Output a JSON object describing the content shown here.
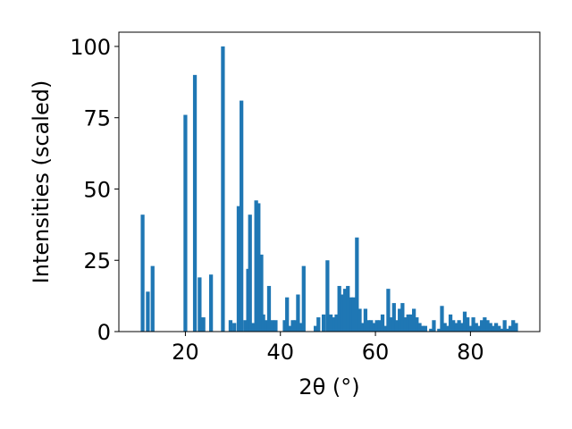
{
  "chart_data": {
    "type": "bar",
    "xlabel": "2θ (°)",
    "ylabel": "Intensities (scaled)",
    "xlim": [
      6.0,
      94.6
    ],
    "ylim": [
      0,
      105
    ],
    "xticks": [
      20,
      40,
      60,
      80
    ],
    "yticks": [
      0,
      25,
      50,
      75,
      100
    ],
    "grid": false,
    "bar_color": "#1f77b4",
    "points": [
      {
        "x": 11.0,
        "y": 41
      },
      {
        "x": 12.1,
        "y": 14
      },
      {
        "x": 13.1,
        "y": 23
      },
      {
        "x": 20.0,
        "y": 76
      },
      {
        "x": 22.0,
        "y": 90
      },
      {
        "x": 23.0,
        "y": 19
      },
      {
        "x": 23.8,
        "y": 5
      },
      {
        "x": 25.4,
        "y": 20
      },
      {
        "x": 27.9,
        "y": 100
      },
      {
        "x": 29.5,
        "y": 4
      },
      {
        "x": 30.3,
        "y": 3
      },
      {
        "x": 31.2,
        "y": 44
      },
      {
        "x": 31.8,
        "y": 81
      },
      {
        "x": 32.6,
        "y": 4
      },
      {
        "x": 33.2,
        "y": 22
      },
      {
        "x": 33.6,
        "y": 41
      },
      {
        "x": 34.3,
        "y": 3
      },
      {
        "x": 34.9,
        "y": 46
      },
      {
        "x": 35.4,
        "y": 45
      },
      {
        "x": 36.0,
        "y": 27
      },
      {
        "x": 36.4,
        "y": 6
      },
      {
        "x": 37.1,
        "y": 4
      },
      {
        "x": 37.6,
        "y": 16
      },
      {
        "x": 38.3,
        "y": 4
      },
      {
        "x": 39.0,
        "y": 4
      },
      {
        "x": 40.9,
        "y": 4
      },
      {
        "x": 41.4,
        "y": 12
      },
      {
        "x": 42.0,
        "y": 2
      },
      {
        "x": 42.6,
        "y": 4
      },
      {
        "x": 43.2,
        "y": 4
      },
      {
        "x": 43.7,
        "y": 13
      },
      {
        "x": 44.3,
        "y": 3
      },
      {
        "x": 44.9,
        "y": 23
      },
      {
        "x": 47.4,
        "y": 2
      },
      {
        "x": 48.0,
        "y": 5
      },
      {
        "x": 49.1,
        "y": 6
      },
      {
        "x": 49.9,
        "y": 25
      },
      {
        "x": 50.6,
        "y": 6
      },
      {
        "x": 51.2,
        "y": 5
      },
      {
        "x": 51.8,
        "y": 6
      },
      {
        "x": 52.4,
        "y": 16
      },
      {
        "x": 53.0,
        "y": 13
      },
      {
        "x": 53.6,
        "y": 15
      },
      {
        "x": 54.2,
        "y": 16
      },
      {
        "x": 54.8,
        "y": 12
      },
      {
        "x": 55.4,
        "y": 12
      },
      {
        "x": 56.1,
        "y": 33
      },
      {
        "x": 56.7,
        "y": 8
      },
      {
        "x": 57.3,
        "y": 3
      },
      {
        "x": 57.9,
        "y": 8
      },
      {
        "x": 58.5,
        "y": 4
      },
      {
        "x": 59.1,
        "y": 4
      },
      {
        "x": 59.7,
        "y": 3
      },
      {
        "x": 60.3,
        "y": 4
      },
      {
        "x": 60.9,
        "y": 4
      },
      {
        "x": 61.5,
        "y": 6
      },
      {
        "x": 62.1,
        "y": 2
      },
      {
        "x": 62.7,
        "y": 15
      },
      {
        "x": 63.3,
        "y": 5
      },
      {
        "x": 63.9,
        "y": 10
      },
      {
        "x": 64.5,
        "y": 4
      },
      {
        "x": 65.1,
        "y": 8
      },
      {
        "x": 65.7,
        "y": 10
      },
      {
        "x": 66.3,
        "y": 5
      },
      {
        "x": 66.9,
        "y": 6
      },
      {
        "x": 67.5,
        "y": 6
      },
      {
        "x": 68.1,
        "y": 8
      },
      {
        "x": 68.7,
        "y": 5
      },
      {
        "x": 69.3,
        "y": 3
      },
      {
        "x": 69.9,
        "y": 2
      },
      {
        "x": 70.5,
        "y": 2
      },
      {
        "x": 71.7,
        "y": 1
      },
      {
        "x": 72.3,
        "y": 4
      },
      {
        "x": 73.4,
        "y": 1
      },
      {
        "x": 74.0,
        "y": 9
      },
      {
        "x": 74.6,
        "y": 3
      },
      {
        "x": 75.2,
        "y": 2
      },
      {
        "x": 75.8,
        "y": 6
      },
      {
        "x": 76.4,
        "y": 4
      },
      {
        "x": 77.0,
        "y": 3
      },
      {
        "x": 77.6,
        "y": 4
      },
      {
        "x": 78.2,
        "y": 3
      },
      {
        "x": 78.8,
        "y": 7
      },
      {
        "x": 79.4,
        "y": 5
      },
      {
        "x": 80.0,
        "y": 2
      },
      {
        "x": 80.6,
        "y": 5
      },
      {
        "x": 81.2,
        "y": 3
      },
      {
        "x": 81.8,
        "y": 2
      },
      {
        "x": 82.4,
        "y": 4
      },
      {
        "x": 83.0,
        "y": 5
      },
      {
        "x": 83.6,
        "y": 4
      },
      {
        "x": 84.2,
        "y": 3
      },
      {
        "x": 84.8,
        "y": 2
      },
      {
        "x": 85.4,
        "y": 3
      },
      {
        "x": 86.0,
        "y": 2
      },
      {
        "x": 86.6,
        "y": 1
      },
      {
        "x": 87.2,
        "y": 4
      },
      {
        "x": 87.8,
        "y": 1
      },
      {
        "x": 88.4,
        "y": 2
      },
      {
        "x": 89.0,
        "y": 4
      },
      {
        "x": 89.6,
        "y": 3
      }
    ]
  }
}
